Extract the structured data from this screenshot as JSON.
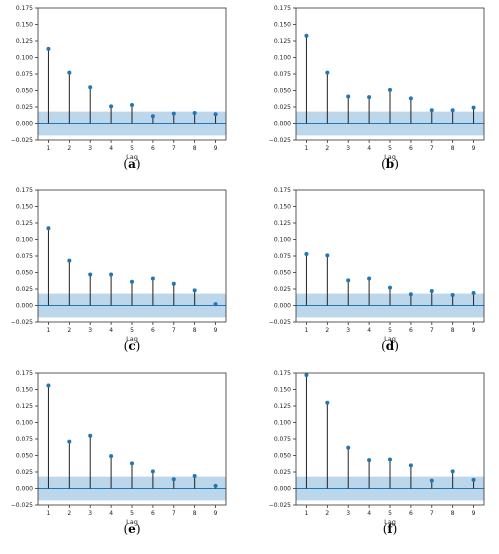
{
  "chart_data": [
    {
      "type": "stem",
      "panel_label": "a",
      "xlabel": "Lag",
      "x": [
        1,
        2,
        3,
        4,
        5,
        6,
        7,
        8,
        9
      ],
      "values": [
        0.113,
        0.077,
        0.055,
        0.026,
        0.028,
        0.011,
        0.015,
        0.016,
        0.014
      ],
      "confidence_band": [
        -0.018,
        0.018
      ],
      "ylim": [
        -0.025,
        0.175
      ],
      "yticks": [
        "−0.025",
        "0.000",
        "0.025",
        "0.050",
        "0.075",
        "0.100",
        "0.125",
        "0.150",
        "0.175"
      ],
      "xticks": [
        "1",
        "2",
        "3",
        "4",
        "5",
        "6",
        "7",
        "8",
        "9"
      ]
    },
    {
      "type": "stem",
      "panel_label": "b",
      "xlabel": "Lag",
      "x": [
        1,
        2,
        3,
        4,
        5,
        6,
        7,
        8,
        9
      ],
      "values": [
        0.133,
        0.077,
        0.041,
        0.04,
        0.051,
        0.038,
        0.02,
        0.02,
        0.024
      ],
      "confidence_band": [
        -0.018,
        0.018
      ],
      "ylim": [
        -0.025,
        0.175
      ],
      "yticks": [
        "−0.025",
        "0.000",
        "0.025",
        "0.050",
        "0.075",
        "0.100",
        "0.125",
        "0.150",
        "0.175"
      ],
      "xticks": [
        "1",
        "2",
        "3",
        "4",
        "5",
        "6",
        "7",
        "8",
        "9"
      ]
    },
    {
      "type": "stem",
      "panel_label": "c",
      "xlabel": "Lag",
      "x": [
        1,
        2,
        3,
        4,
        5,
        6,
        7,
        8,
        9
      ],
      "values": [
        0.117,
        0.068,
        0.047,
        0.047,
        0.036,
        0.041,
        0.033,
        0.023,
        0.002
      ],
      "confidence_band": [
        -0.018,
        0.018
      ],
      "ylim": [
        -0.025,
        0.175
      ],
      "yticks": [
        "−0.025",
        "0.000",
        "0.025",
        "0.050",
        "0.075",
        "0.100",
        "0.125",
        "0.150",
        "0.175"
      ],
      "xticks": [
        "1",
        "2",
        "3",
        "4",
        "5",
        "6",
        "7",
        "8",
        "9"
      ]
    },
    {
      "type": "stem",
      "panel_label": "d",
      "xlabel": "Lag",
      "x": [
        1,
        2,
        3,
        4,
        5,
        6,
        7,
        8,
        9
      ],
      "values": [
        0.078,
        0.076,
        0.038,
        0.041,
        0.027,
        0.017,
        0.022,
        0.016,
        0.019
      ],
      "confidence_band": [
        -0.018,
        0.018
      ],
      "ylim": [
        -0.025,
        0.175
      ],
      "yticks": [
        "−0.025",
        "0.000",
        "0.025",
        "0.050",
        "0.075",
        "0.100",
        "0.125",
        "0.150",
        "0.175"
      ],
      "xticks": [
        "1",
        "2",
        "3",
        "4",
        "5",
        "6",
        "7",
        "8",
        "9"
      ]
    },
    {
      "type": "stem",
      "panel_label": "e",
      "xlabel": "Lag",
      "x": [
        1,
        2,
        3,
        4,
        5,
        6,
        7,
        8,
        9
      ],
      "values": [
        0.156,
        0.071,
        0.08,
        0.049,
        0.038,
        0.026,
        0.014,
        0.019,
        0.004
      ],
      "confidence_band": [
        -0.018,
        0.018
      ],
      "ylim": [
        -0.025,
        0.175
      ],
      "yticks": [
        "−0.025",
        "0.000",
        "0.025",
        "0.050",
        "0.075",
        "0.100",
        "0.125",
        "0.150",
        "0.175"
      ],
      "xticks": [
        "1",
        "2",
        "3",
        "4",
        "5",
        "6",
        "7",
        "8",
        "9"
      ]
    },
    {
      "type": "stem",
      "panel_label": "f",
      "xlabel": "Lag",
      "x": [
        1,
        2,
        3,
        4,
        5,
        6,
        7,
        8,
        9
      ],
      "values": [
        0.172,
        0.13,
        0.062,
        0.043,
        0.044,
        0.035,
        0.012,
        0.026,
        0.013
      ],
      "confidence_band": [
        -0.018,
        0.018
      ],
      "ylim": [
        -0.025,
        0.175
      ],
      "yticks": [
        "−0.025",
        "0.000",
        "0.025",
        "0.050",
        "0.075",
        "0.100",
        "0.125",
        "0.150",
        "0.175"
      ],
      "xticks": [
        "1",
        "2",
        "3",
        "4",
        "5",
        "6",
        "7",
        "8",
        "9"
      ]
    }
  ],
  "colors": {
    "stem": "#222222",
    "marker": "#1f77b4",
    "band": "#a6c8e6",
    "baseline": "#1f77b4",
    "frame": "#333333"
  }
}
